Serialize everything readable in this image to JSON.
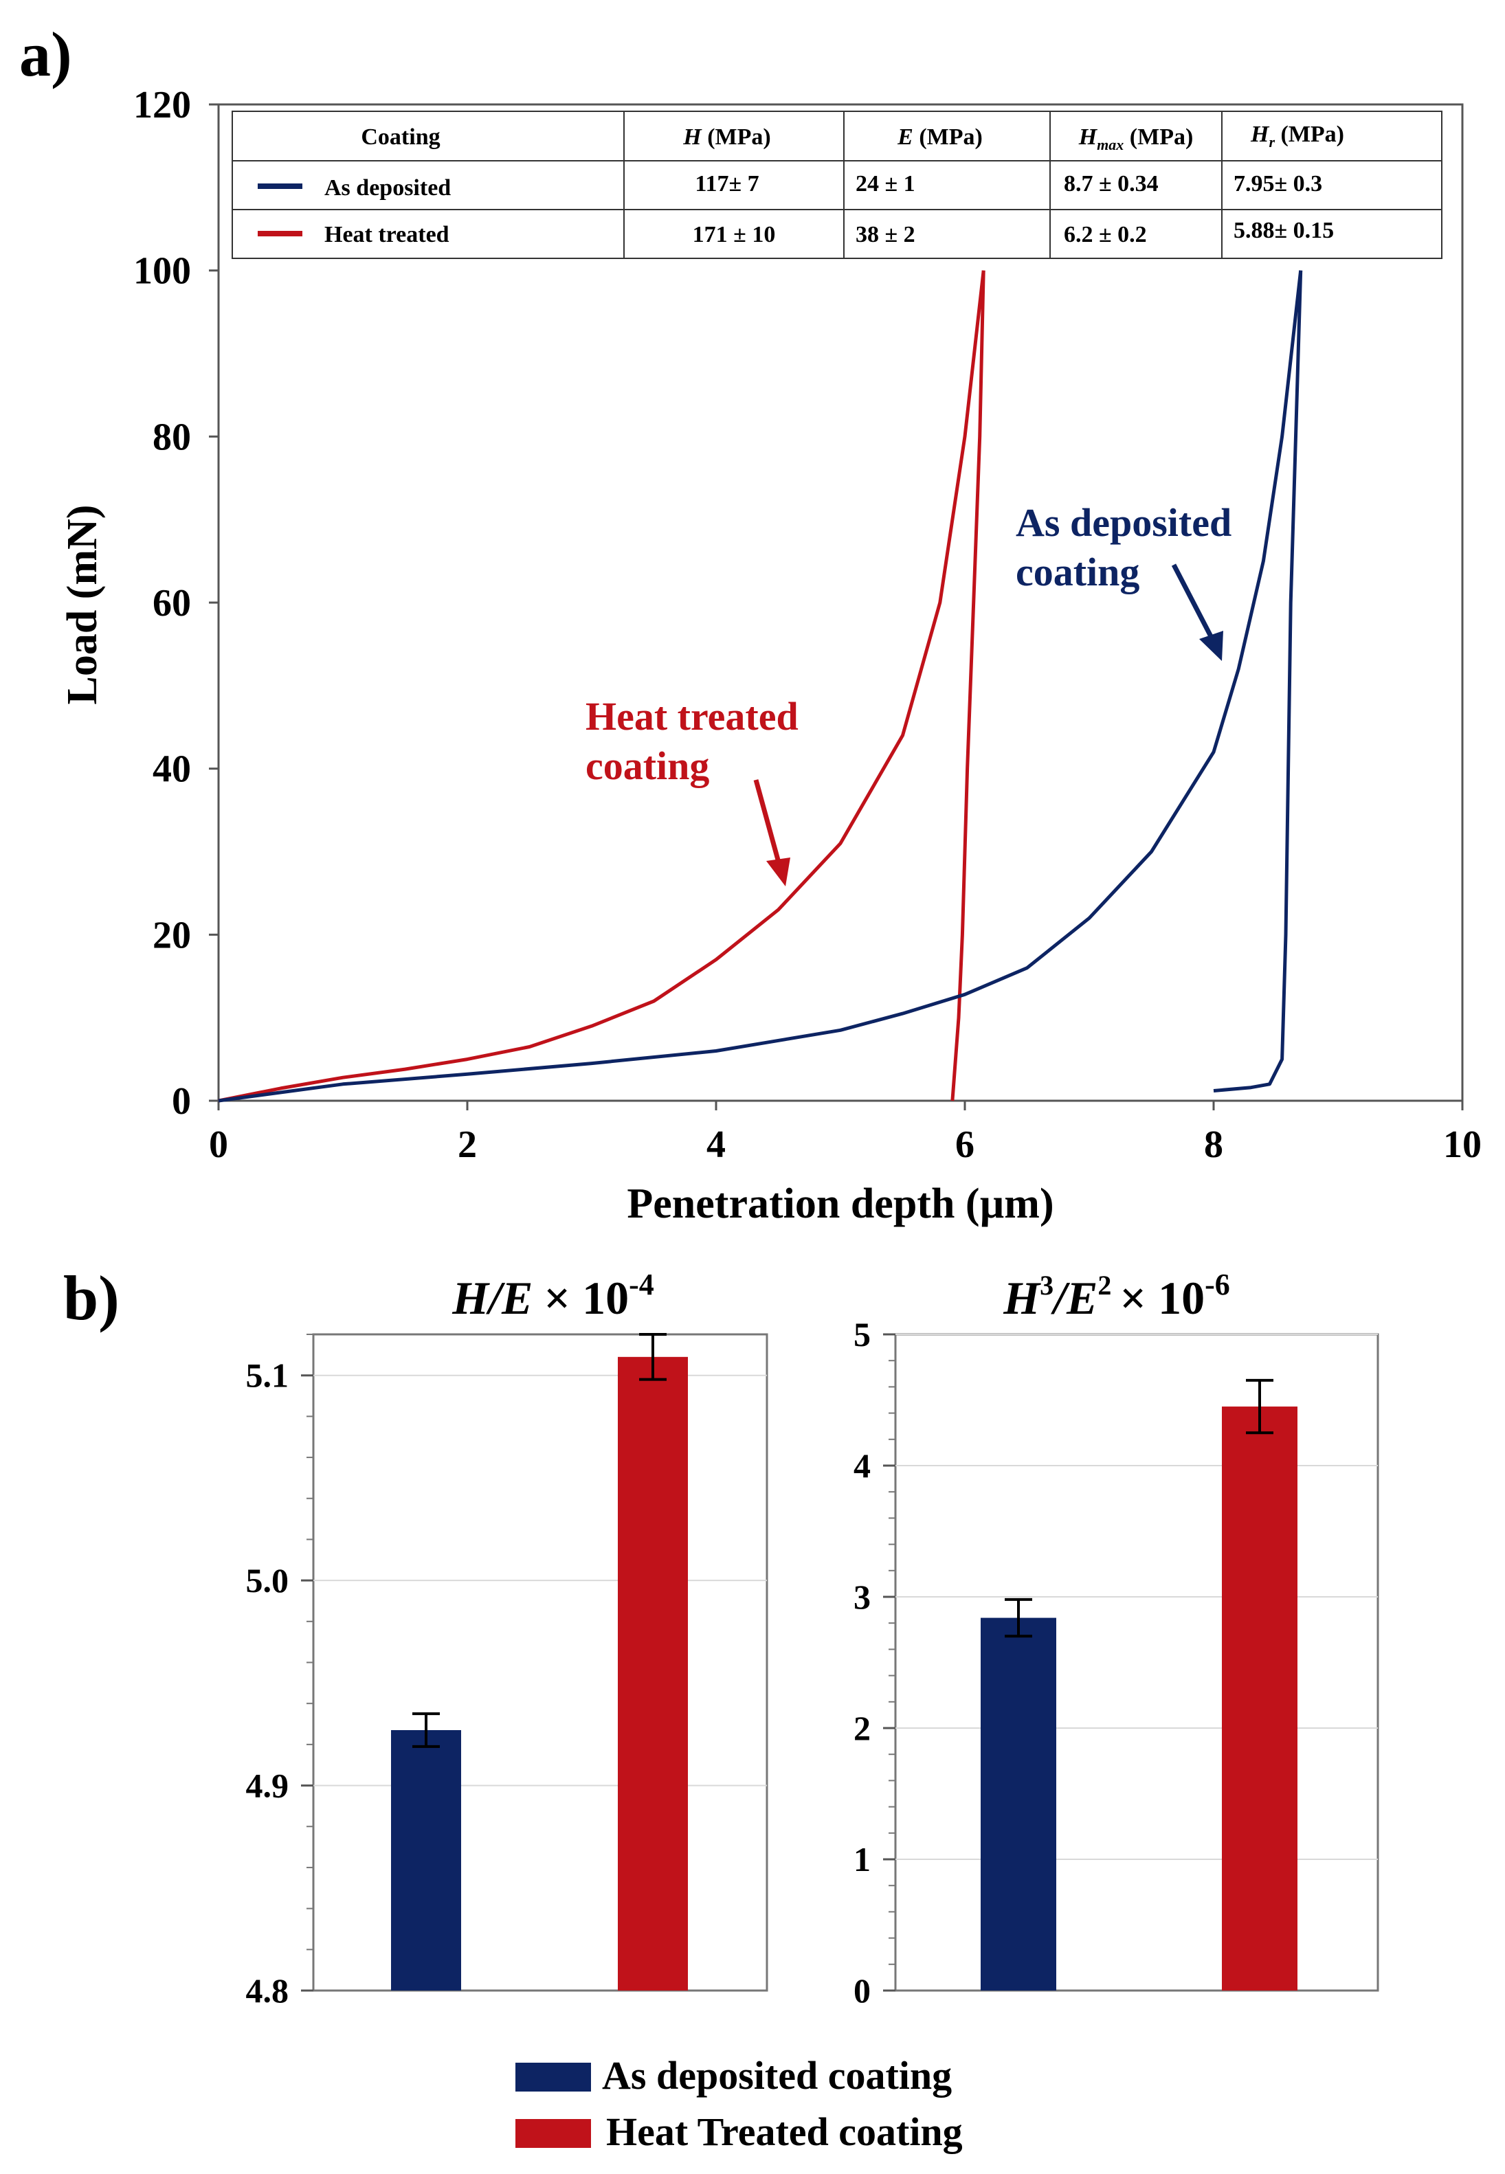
{
  "figure": {
    "panel_a_label": "a)",
    "panel_b_label": "b)"
  },
  "colors": {
    "as_deposited": "#0d2463",
    "heat_treated": "#c0121a",
    "axis": "#000000",
    "grid": "#d9d9d9"
  },
  "table": {
    "headers": [
      "Coating",
      "H (MPa)",
      "E (MPa)",
      "Hmax (MPa)",
      "Hr (MPa)"
    ],
    "rows": [
      {
        "name": "As deposited",
        "H": "117± 7",
        "E": "24 ± 1",
        "Hmax": "8.7 ± 0.34",
        "Hr": "7.95± 0.3"
      },
      {
        "name": "Heat treated",
        "H": "171 ± 10",
        "E": "38 ± 2",
        "Hmax": "6.2 ± 0.2",
        "Hr": "5.88± 0.15"
      }
    ]
  },
  "annotations": {
    "as_deposited": [
      "As deposited",
      "coating"
    ],
    "heat_treated": [
      "Heat treated",
      "coating"
    ]
  },
  "legend": {
    "as_deposited": "As deposited coating",
    "heat_treated": "Heat Treated coating"
  },
  "chart_data": [
    {
      "type": "line",
      "xlabel": "Penetration depth (µm)",
      "ylabel": "Load (mN)",
      "xlim": [
        0,
        10
      ],
      "ylim": [
        0,
        120
      ],
      "xticks": [
        0,
        2,
        4,
        6,
        8,
        10
      ],
      "yticks": [
        0,
        20,
        40,
        60,
        80,
        100,
        120
      ],
      "series": [
        {
          "name": "Heat treated",
          "loading": [
            [
              0,
              0
            ],
            [
              0.5,
              1.5
            ],
            [
              1,
              2.8
            ],
            [
              1.5,
              3.8
            ],
            [
              2,
              5
            ],
            [
              2.5,
              6.5
            ],
            [
              3,
              9
            ],
            [
              3.5,
              12
            ],
            [
              4,
              17
            ],
            [
              4.5,
              23
            ],
            [
              5,
              31
            ],
            [
              5.5,
              44
            ],
            [
              5.8,
              60
            ],
            [
              6.0,
              80
            ],
            [
              6.15,
              100
            ]
          ],
          "unloading": [
            [
              6.15,
              100
            ],
            [
              6.12,
              80
            ],
            [
              6.07,
              60
            ],
            [
              6.02,
              40
            ],
            [
              5.98,
              20
            ],
            [
              5.95,
              10
            ],
            [
              5.9,
              0
            ]
          ]
        },
        {
          "name": "As deposited",
          "loading": [
            [
              0,
              0
            ],
            [
              1,
              2
            ],
            [
              2,
              3.2
            ],
            [
              3,
              4.5
            ],
            [
              4,
              6
            ],
            [
              5,
              8.5
            ],
            [
              5.5,
              10.5
            ],
            [
              6,
              12.8
            ],
            [
              6.5,
              16
            ],
            [
              7,
              22
            ],
            [
              7.5,
              30
            ],
            [
              8,
              42
            ],
            [
              8.2,
              52
            ],
            [
              8.4,
              65
            ],
            [
              8.55,
              80
            ],
            [
              8.7,
              100
            ]
          ],
          "unloading": [
            [
              8.7,
              100
            ],
            [
              8.66,
              80
            ],
            [
              8.62,
              60
            ],
            [
              8.6,
              40
            ],
            [
              8.58,
              20
            ],
            [
              8.55,
              5
            ],
            [
              8.45,
              2
            ],
            [
              8.3,
              1.6
            ],
            [
              8,
              1.2
            ]
          ]
        }
      ]
    },
    {
      "type": "bar",
      "title": "H/E × 10-4",
      "title_main": "H/E",
      "title_mult": "× 10",
      "title_exp": "-4",
      "categories": [
        "As deposited coating",
        "Heat Treated coating"
      ],
      "values": [
        4.927,
        5.109
      ],
      "errors": [
        0.008,
        0.011
      ],
      "ylim": [
        4.8,
        5.12
      ],
      "yticks": [
        4.8,
        4.9,
        5.0,
        5.1
      ],
      "ytick_labels": [
        "4.8",
        "4.9",
        "5.0",
        "5.1"
      ]
    },
    {
      "type": "bar",
      "title": "H3/E2 × 10-6",
      "title_H": "H",
      "title_H_exp": "3",
      "title_E": "/E",
      "title_E_exp": "2",
      "title_mult": "× 10",
      "title_exp": "-6",
      "categories": [
        "As deposited coating",
        "Heat Treated coating"
      ],
      "values": [
        2.84,
        4.45
      ],
      "errors": [
        0.14,
        0.2
      ],
      "ylim": [
        0,
        5
      ],
      "yticks": [
        0,
        1,
        2,
        3,
        4,
        5
      ],
      "ytick_labels": [
        "0",
        "1",
        "2",
        "3",
        "4",
        "5"
      ]
    }
  ]
}
